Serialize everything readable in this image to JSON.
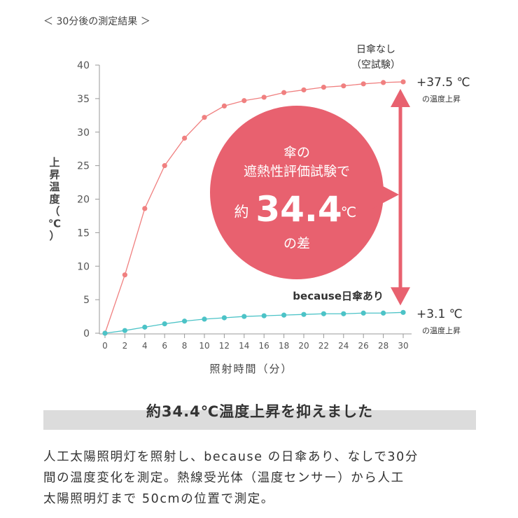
{
  "header": "＜ 30分後の測定結果 ＞",
  "chart_data": {
    "type": "line",
    "xlabel": "照射時間（分）",
    "ylabel_chars": [
      "上",
      "昇",
      "温",
      "度",
      "（",
      "℃",
      "）"
    ],
    "xlim": [
      0,
      30
    ],
    "ylim": [
      0,
      40
    ],
    "x_ticks": [
      0,
      2,
      4,
      6,
      8,
      10,
      12,
      14,
      16,
      18,
      20,
      22,
      24,
      26,
      28,
      30
    ],
    "y_ticks": [
      0,
      5,
      10,
      15,
      20,
      25,
      30,
      35,
      40
    ],
    "grid": false,
    "series": [
      {
        "name": "日傘なし（空試験）",
        "color": "#f08080",
        "x": [
          0,
          2,
          4,
          6,
          8,
          10,
          12,
          14,
          16,
          18,
          20,
          22,
          24,
          26,
          28,
          30
        ],
        "values": [
          0,
          8.7,
          18.6,
          25.0,
          29.1,
          32.2,
          33.9,
          34.7,
          35.2,
          35.9,
          36.3,
          36.7,
          36.9,
          37.2,
          37.4,
          37.5
        ]
      },
      {
        "name": "because日傘あり",
        "color": "#4cc3c7",
        "x": [
          0,
          2,
          4,
          6,
          8,
          10,
          12,
          14,
          16,
          18,
          20,
          22,
          24,
          26,
          28,
          30
        ],
        "values": [
          0,
          0.4,
          0.9,
          1.4,
          1.8,
          2.1,
          2.3,
          2.5,
          2.6,
          2.7,
          2.8,
          2.9,
          2.9,
          3.0,
          3.0,
          3.1
        ]
      }
    ],
    "annotations": {
      "top_series_label_line1": "日傘なし",
      "top_series_label_line2": "（空試験）",
      "bottom_series_label": "because日傘あり",
      "top_value": "+37.5 ℃",
      "top_value_sub": "の温度上昇",
      "bottom_value": "+3.1 ℃",
      "bottom_value_sub": "の温度上昇",
      "bubble_line1": "傘の",
      "bubble_line2": "遮熱性評価試験で",
      "bubble_prefix": "約",
      "bubble_number": "34.4",
      "bubble_unit": "℃",
      "bubble_suffix": "の差"
    }
  },
  "colors": {
    "accent": "#e8616f",
    "axis": "#999999",
    "banner_bg": "#dcdcdc"
  },
  "banner": "約34.4℃温度上昇を抑えました",
  "description": [
    "人工太陽照明灯を照射し、because の日傘あり、なしで30分",
    "間の温度変化を測定。熱線受光体（温度センサー）から人工",
    "太陽照明灯まで 50cmの位置で測定。"
  ]
}
